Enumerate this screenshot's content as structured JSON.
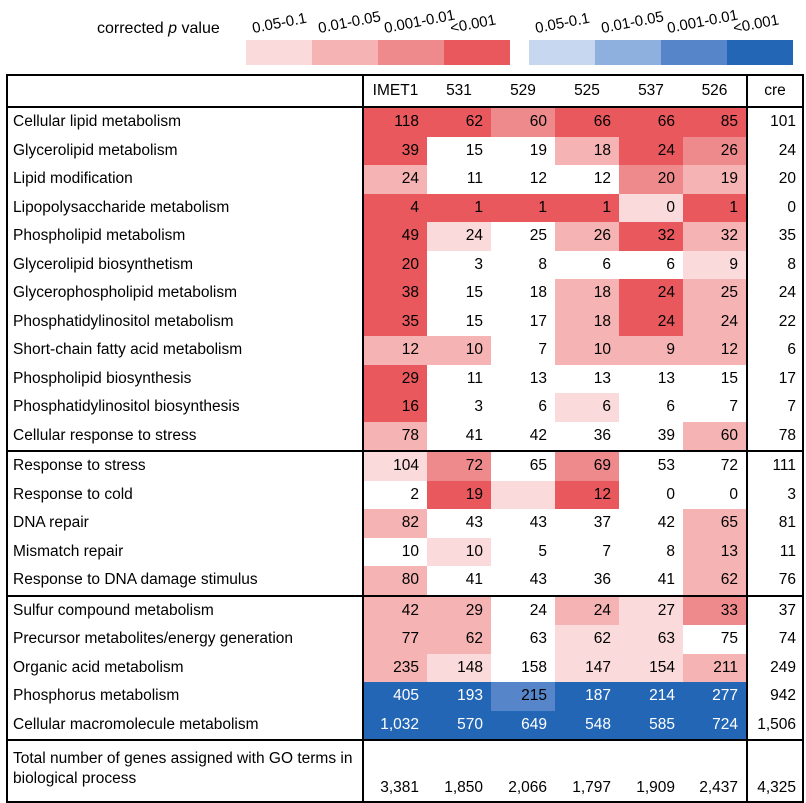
{
  "legend": {
    "title_prefix": "corrected ",
    "title_italic": "p",
    "title_suffix": " value",
    "red": [
      {
        "label": "0.05-0.1",
        "color": "#fadadb"
      },
      {
        "label": "0.01-0.05",
        "color": "#f5b3b3"
      },
      {
        "label": "0.001-0.01",
        "color": "#ef8a8c"
      },
      {
        "label": "<0.001",
        "color": "#e8585c"
      }
    ],
    "blue": [
      {
        "label": "0.05-0.1",
        "color": "#c6d7ef"
      },
      {
        "label": "0.01-0.05",
        "color": "#8eb0de"
      },
      {
        "label": "0.001-0.01",
        "color": "#5686c9"
      },
      {
        "label": "<0.001",
        "color": "#2266b5"
      }
    ]
  },
  "chart_data": {
    "type": "table",
    "columns": [
      "IMET1",
      "531",
      "529",
      "525",
      "537",
      "526",
      "cre"
    ],
    "groups": [
      [
        {
          "term": "Cellular lipid metabolism",
          "values": [
            "118",
            "62",
            "60",
            "66",
            "66",
            "85",
            "101"
          ],
          "colors": [
            "#e8585c",
            "#e8585c",
            "#ef8a8c",
            "#e8585c",
            "#e8585c",
            "#e8585c",
            ""
          ]
        },
        {
          "term": "Glycerolipid metabolism",
          "values": [
            "39",
            "15",
            "19",
            "18",
            "24",
            "26",
            "24"
          ],
          "colors": [
            "#e8585c",
            "",
            "",
            "#f5b3b3",
            "#e8585c",
            "#ef8a8c",
            ""
          ]
        },
        {
          "term": "Lipid modification",
          "values": [
            "24",
            "11",
            "12",
            "12",
            "20",
            "19",
            "20"
          ],
          "colors": [
            "#f5b3b3",
            "",
            "",
            "",
            "#ef8a8c",
            "#f5b3b3",
            ""
          ]
        },
        {
          "term": "Lipopolysaccharide metabolism",
          "values": [
            "4",
            "1",
            "1",
            "1",
            "0",
            "1",
            "0"
          ],
          "colors": [
            "#e8585c",
            "#e8585c",
            "#e8585c",
            "#e8585c",
            "#fadadb",
            "#e8585c",
            ""
          ]
        },
        {
          "term": "Phospholipid metabolism",
          "values": [
            "49",
            "24",
            "25",
            "26",
            "32",
            "32",
            "35"
          ],
          "colors": [
            "#e8585c",
            "#fadadb",
            "",
            "#f5b3b3",
            "#e8585c",
            "#f5b3b3",
            ""
          ]
        },
        {
          "term": "Glycerolipid biosynthetism",
          "values": [
            "20",
            "3",
            "8",
            "6",
            "6",
            "9",
            "8"
          ],
          "colors": [
            "#e8585c",
            "",
            "",
            "",
            "",
            "#fadadb",
            ""
          ]
        },
        {
          "term": "Glycerophospholipid metabolism",
          "values": [
            "38",
            "15",
            "18",
            "18",
            "24",
            "25",
            "24"
          ],
          "colors": [
            "#e8585c",
            "",
            "",
            "#f5b3b3",
            "#e8585c",
            "#f5b3b3",
            ""
          ]
        },
        {
          "term": "Phosphatidylinositol metabolism",
          "values": [
            "35",
            "15",
            "17",
            "18",
            "24",
            "24",
            "22"
          ],
          "colors": [
            "#e8585c",
            "",
            "",
            "#f5b3b3",
            "#e8585c",
            "#f5b3b3",
            ""
          ]
        },
        {
          "term": "Short-chain fatty acid metabolism",
          "values": [
            "12",
            "10",
            "7",
            "10",
            "9",
            "12",
            "6"
          ],
          "colors": [
            "#f5b3b3",
            "#f5b3b3",
            "",
            "#f5b3b3",
            "#f5b3b3",
            "#f5b3b3",
            ""
          ]
        },
        {
          "term": "Phospholipid biosynthesis",
          "values": [
            "29",
            "11",
            "13",
            "13",
            "13",
            "15",
            "17"
          ],
          "colors": [
            "#e8585c",
            "",
            "",
            "",
            "",
            "",
            ""
          ]
        },
        {
          "term": "Phosphatidylinositol biosynthesis",
          "values": [
            "16",
            "3",
            "6",
            "6",
            "6",
            "7",
            "7"
          ],
          "colors": [
            "#e8585c",
            "",
            "",
            "#fadadb",
            "",
            "",
            ""
          ]
        },
        {
          "term": "Cellular response to stress",
          "values": [
            "78",
            "41",
            "42",
            "36",
            "39",
            "60",
            "78"
          ],
          "colors": [
            "#f5b3b3",
            "",
            "",
            "",
            "",
            "#f5b3b3",
            ""
          ]
        }
      ],
      [
        {
          "term": "Response to stress",
          "values": [
            "104",
            "72",
            "65",
            "69",
            "53",
            "72",
            "111"
          ],
          "colors": [
            "#fadadb",
            "#ef8a8c",
            "",
            "#ef8a8c",
            "",
            "",
            ""
          ]
        },
        {
          "term": "Response to cold",
          "values": [
            "2",
            "19",
            "",
            "12",
            "0",
            "0",
            "3"
          ],
          "colors": [
            "",
            "#e8585c",
            "#fadadb",
            "#e8585c",
            "",
            "",
            ""
          ]
        },
        {
          "term": "DNA repair",
          "values": [
            "82",
            "43",
            "43",
            "37",
            "42",
            "65",
            "81"
          ],
          "colors": [
            "#f5b3b3",
            "",
            "",
            "",
            "",
            "#f5b3b3",
            ""
          ]
        },
        {
          "term": "Mismatch repair",
          "values": [
            "10",
            "10",
            "5",
            "7",
            "8",
            "13",
            "11"
          ],
          "colors": [
            "",
            "#fadadb",
            "",
            "",
            "",
            "#f5b3b3",
            ""
          ]
        },
        {
          "term": "Response to DNA damage stimulus",
          "values": [
            "80",
            "41",
            "43",
            "36",
            "41",
            "62",
            "76"
          ],
          "colors": [
            "#f5b3b3",
            "",
            "",
            "",
            "",
            "#f5b3b3",
            ""
          ]
        }
      ],
      [
        {
          "term": "Sulfur compound metabolism",
          "values": [
            "42",
            "29",
            "24",
            "24",
            "27",
            "33",
            "37"
          ],
          "colors": [
            "#f5b3b3",
            "#f5b3b3",
            "",
            "#f5b3b3",
            "#fadadb",
            "#ef8a8c",
            ""
          ]
        },
        {
          "term": "Precursor metabolites/energy generation",
          "values": [
            "77",
            "62",
            "63",
            "62",
            "63",
            "75",
            "74"
          ],
          "colors": [
            "#f5b3b3",
            "#f5b3b3",
            "",
            "#fadadb",
            "#fadadb",
            "",
            ""
          ]
        },
        {
          "term": "Organic acid metabolism",
          "values": [
            "235",
            "148",
            "158",
            "147",
            "154",
            "211",
            "249"
          ],
          "colors": [
            "#f5b3b3",
            "#fadadb",
            "",
            "#fadadb",
            "#fadadb",
            "#f5b3b3",
            ""
          ]
        },
        {
          "term": "Phosphorus metabolism",
          "values": [
            "405",
            "193",
            "215",
            "187",
            "214",
            "277",
            "942"
          ],
          "colors": [
            "#2266b5",
            "#2266b5",
            "#5686c9",
            "#2266b5",
            "#2266b5",
            "#2266b5",
            ""
          ]
        },
        {
          "term": "Cellular macromolecule metabolism",
          "values": [
            "1,032",
            "570",
            "649",
            "548",
            "585",
            "724",
            "1,506"
          ],
          "colors": [
            "#2266b5",
            "#2266b5",
            "#2266b5",
            "#2266b5",
            "#2266b5",
            "#2266b5",
            ""
          ]
        }
      ]
    ],
    "total": {
      "term": "Total number of genes assigned with GO terms in biological process",
      "values": [
        "3,381",
        "1,850",
        "2,066",
        "1,797",
        "1,909",
        "2,437",
        "4,325"
      ]
    }
  }
}
